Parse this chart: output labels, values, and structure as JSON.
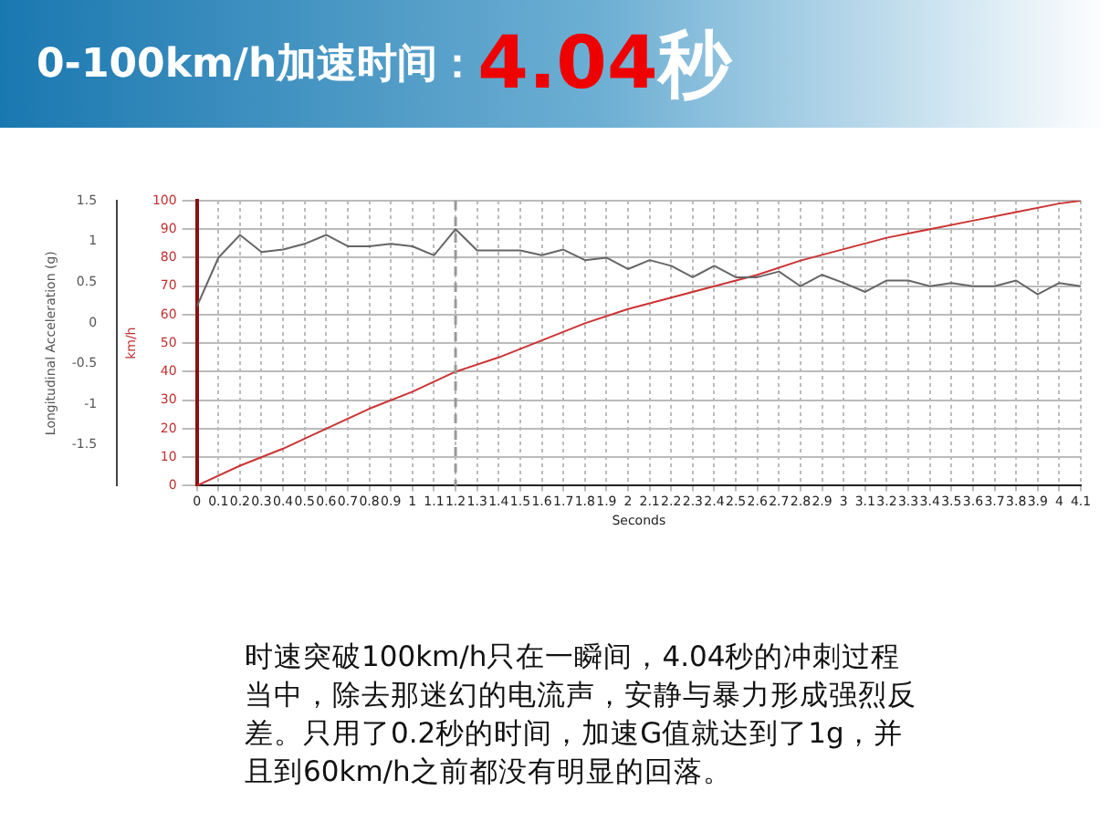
{
  "chart_data": {
    "type": "line",
    "title": "0-100km/h加速时间：4.04秒",
    "xlabel": "Seconds",
    "ylabel": "Longitudinal Acceleration (g)",
    "y2label": "km/h",
    "x": [
      0,
      0.1,
      0.2,
      0.3,
      0.4,
      0.5,
      0.6,
      0.7,
      0.8,
      0.9,
      1,
      1.1,
      1.2,
      1.3,
      1.4,
      1.5,
      1.6,
      1.7,
      1.8,
      1.9,
      2,
      2.1,
      2.2,
      2.3,
      2.4,
      2.5,
      2.6,
      2.7,
      2.8,
      2.9,
      3,
      3.1,
      3.2,
      3.3,
      3.4,
      3.5,
      3.6,
      3.7,
      3.8,
      3.9,
      4,
      4.1
    ],
    "series": [
      {
        "color": "#666666",
        "values": [
          0.2,
          0.8,
          1.08,
          0.87,
          0.9,
          0.97,
          1.08,
          0.94,
          0.94,
          0.97,
          0.94,
          0.83,
          1.15,
          0.89,
          0.89,
          0.89,
          0.83,
          0.9,
          0.77,
          0.8,
          0.66,
          0.77,
          0.7,
          0.56,
          0.7,
          0.56,
          0.56,
          0.63,
          0.45,
          0.59,
          0.49,
          0.38,
          0.52,
          0.52,
          0.45,
          0.49,
          0.45,
          0.45,
          0.52,
          0.35,
          0.49,
          0.45
        ]
      },
      {
        "color": "#cc3333",
        "axis": "y2",
        "x": [
          0,
          0.2,
          0.4,
          0.6,
          0.8,
          1,
          1.2,
          1.4,
          1.6,
          1.8,
          2,
          2.2,
          2.4,
          2.6,
          2.8,
          3,
          3.2,
          3.4,
          3.6,
          3.8,
          4,
          4.1
        ],
        "values": [
          0,
          7,
          13,
          20,
          27,
          33,
          40,
          45,
          51,
          57,
          62,
          66,
          70,
          74,
          79,
          83,
          87,
          90,
          93,
          96,
          99,
          100
        ]
      }
    ],
    "xlim": [
      0,
      4.1
    ],
    "xticks": [
      0,
      0.1,
      0.2,
      0.3,
      0.4,
      0.5,
      0.6,
      0.7,
      0.8,
      0.9,
      1,
      1.1,
      1.2,
      1.3,
      1.4,
      1.5,
      1.6,
      1.7,
      1.8,
      1.9,
      2,
      2.1,
      2.2,
      2.3,
      2.4,
      2.5,
      2.6,
      2.7,
      2.8,
      2.9,
      3,
      3.1,
      3.2,
      3.3,
      3.4,
      3.5,
      3.6,
      3.7,
      3.8,
      3.9,
      4,
      4.1
    ],
    "ylim": [
      -2,
      1.5
    ],
    "yticks": [
      1.5,
      1,
      0.5,
      0,
      -0.5,
      -1,
      -1.5
    ],
    "y2lim": [
      0,
      100
    ],
    "y2ticks": [
      0,
      10,
      20,
      30,
      40,
      50,
      60,
      70,
      80,
      90,
      100
    ],
    "ref_lines": [
      {
        "axis": "x",
        "value": 1.2,
        "color": "#999999",
        "line_style": "dashed"
      }
    ],
    "annotations": [
      "时速突破100km/h只在一瞬间，4.04秒的冲刺过程当中，除去那迷幻的电流声，安静与暴力形成强烈反差。只用了0.2秒的时间，加速G值就达到了1g，并且到60km/h之前都没有明显的回落。"
    ],
    "grid": true,
    "legend": false,
    "marker": "none",
    "line_style": "solid"
  }
}
